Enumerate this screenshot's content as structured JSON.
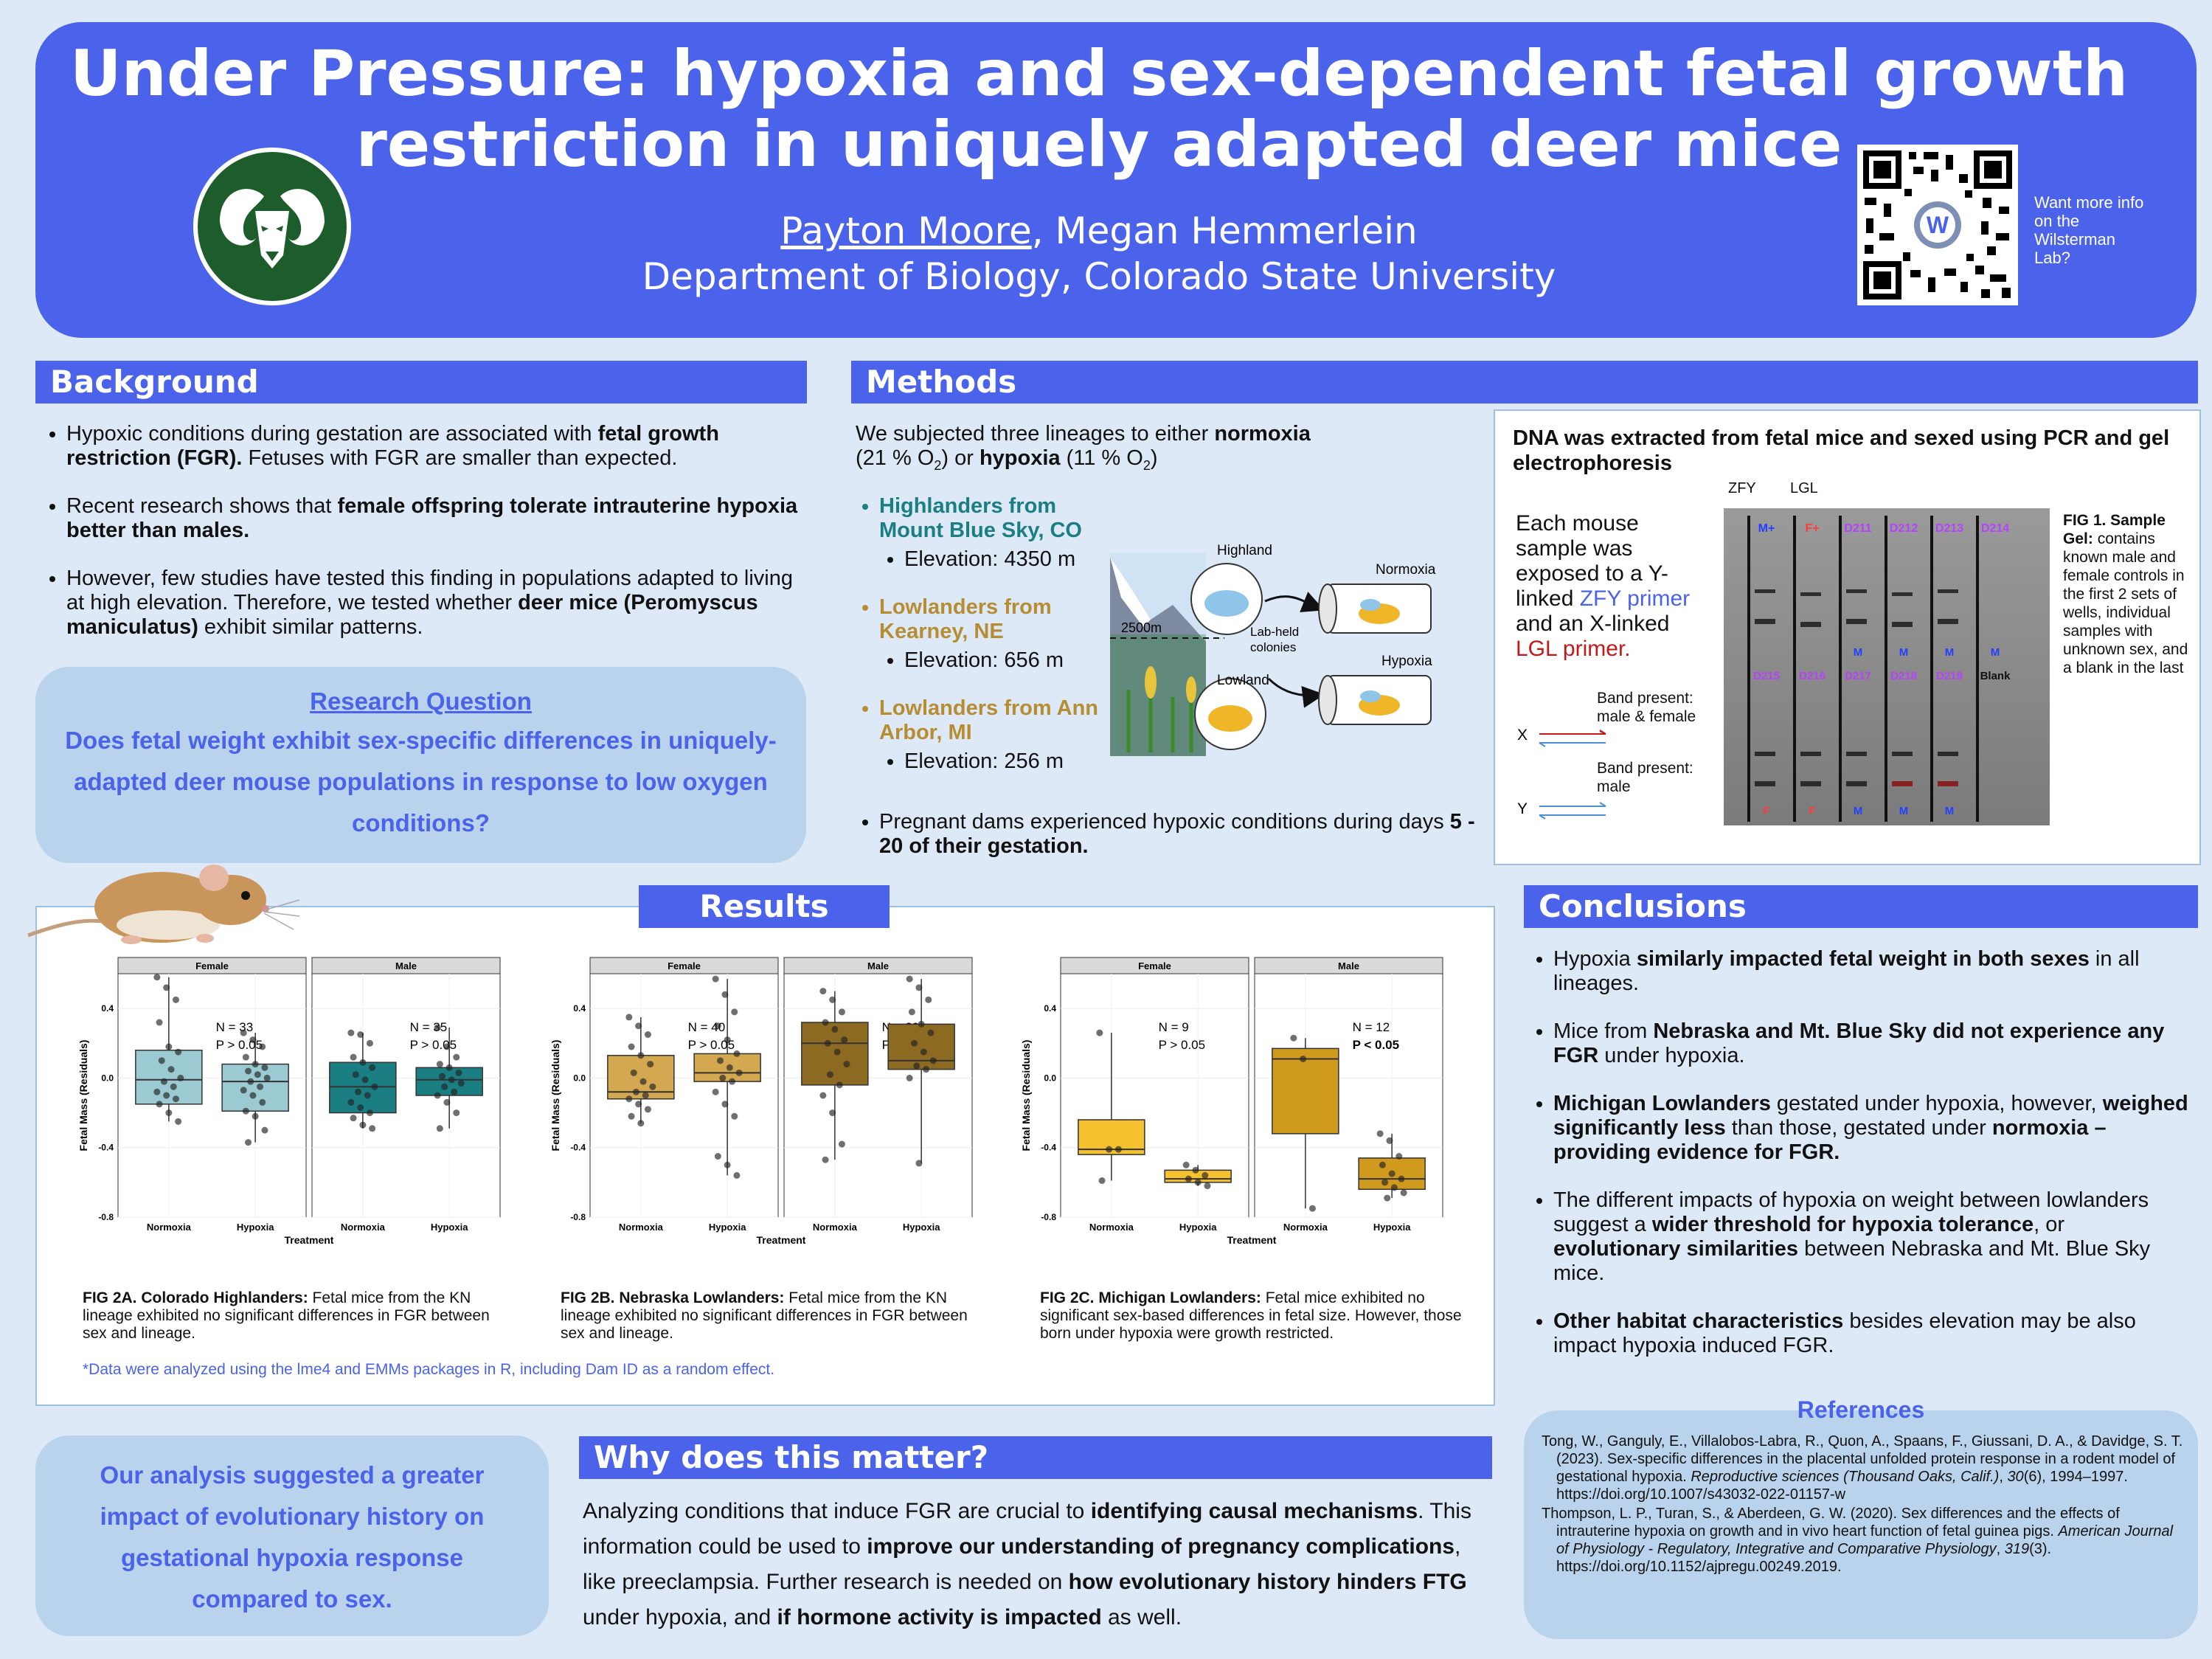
{
  "header": {
    "title_line1": "Under Pressure: hypoxia and sex-dependent fetal growth",
    "title_line2": "restriction in uniquely adapted deer mice",
    "presenting_author": "Payton Moore",
    "coauthor": ", Megan Hemmerlein",
    "affiliation": "Department of Biology, Colorado State University",
    "qr_text": "Want more info on the Wilsterman Lab?",
    "qr_logo_letter": "W"
  },
  "background": {
    "heading": "Background",
    "b1_a": "Hypoxic conditions during gestation are associated with ",
    "b1_b": "fetal growth restriction (FGR).",
    "b1_c": " Fetuses with FGR are smaller than expected.",
    "b2_a": "Recent research shows that ",
    "b2_b": "female offspring tolerate intrauterine hypoxia better than males.",
    "b3_a": "However, few studies have tested this finding in populations adapted to living at high elevation. Therefore, we tested whether ",
    "b3_b": "deer mice (Peromyscus maniculatus)",
    "b3_c": " exhibit similar patterns.",
    "rq_title": "Research Question",
    "rq_text": "Does fetal weight exhibit sex-specific differences in uniquely-adapted deer mouse populations in response to low oxygen conditions?"
  },
  "methods": {
    "heading": "Methods",
    "intro_a": "We subjected three lineages to either ",
    "intro_normoxia": "normoxia",
    "intro_b": "(21 % O",
    "intro_c": ") or ",
    "intro_hypoxia": "hypoxia",
    "intro_d": " (11 % O",
    "intro_e": ")",
    "sub2": "2",
    "lineages": [
      {
        "name": "Highlanders from Mount Blue Sky, CO",
        "elev": "Elevation: 4350 m"
      },
      {
        "name": "Lowlanders from Kearney, NE",
        "elev": "Elevation: 656 m"
      },
      {
        "name": "Lowlanders from Ann Arbor, MI",
        "elev": "Elevation: 256 m"
      }
    ],
    "preg_a": "Pregnant dams experienced hypoxic conditions during days ",
    "preg_b": "5 - 20 of their gestation.",
    "diagram": {
      "highland": "Highland",
      "lowland": "Lowland",
      "altitude": "2500m",
      "lab": "Lab-held colonies",
      "normoxia": "Normoxia",
      "hypoxia": "Hypoxia"
    }
  },
  "dna": {
    "title": "DNA was extracted from fetal mice and sexed using PCR and gel electrophoresis",
    "desc_a": "Each mouse sample was exposed to a Y-linked ",
    "desc_zfy": "ZFY primer",
    "desc_b": " and an X-linked ",
    "desc_lgl": "LGL primer.",
    "zfy": "ZFY",
    "lgl": "LGL",
    "band1": "Band present: male & female",
    "band2": "Band present: male",
    "x": "X",
    "y": "Y",
    "lanes_top": [
      "M+",
      "F+",
      "D211",
      "D212",
      "D213",
      "D214"
    ],
    "lanes_mid": [
      "D215",
      "D216",
      "D217",
      "D218",
      "D219",
      "Blank"
    ],
    "sex_top": [
      "",
      "",
      "M",
      "M",
      "M",
      "M"
    ],
    "sex_bottom": [
      "F",
      "F",
      "M",
      "M",
      "M",
      ""
    ],
    "fig_title": "FIG 1. Sample Gel:",
    "fig_text": "contains known male and female controls in the first 2 sets of wells, individual samples with unknown sex, and a blank in the last"
  },
  "results": {
    "heading": "Results",
    "note": "*Data were analyzed using the lme4 and EMMs packages in R, including Dam ID as a random effect.",
    "captions": [
      {
        "title": "FIG 2A. Colorado Highlanders:",
        "text": " Fetal mice from the KN lineage exhibited no significant differences in FGR between sex and lineage."
      },
      {
        "title": "FIG 2B. Nebraska Lowlanders:",
        "text": " Fetal mice from the KN lineage exhibited no significant differences in FGR between sex and lineage."
      },
      {
        "title": "FIG 2C. Michigan Lowlanders:",
        "text": " Fetal mice exhibited no significant sex-based differences in fetal size. However, those born under hypoxia were growth restricted."
      }
    ]
  },
  "chart_data": [
    {
      "type": "box",
      "ylabel": "Fetal Mass (Residuals)",
      "xlabel": "Treatment",
      "categories": [
        "Normoxia",
        "Hypoxia"
      ],
      "facets": [
        "Female",
        "Male"
      ],
      "yticks": [
        "0.4",
        "0.0",
        "-0.4",
        "-0.8"
      ],
      "ylim": [
        -0.8,
        0.6
      ],
      "colors": [
        "#9ccad2",
        "#1a7e83"
      ],
      "annotations": [
        {
          "n": "N = 33",
          "p": "P > 0.05",
          "bold": false
        },
        {
          "n": "N = 35",
          "p": "P > 0.05",
          "bold": false
        }
      ],
      "boxes": [
        {
          "facet": 0,
          "cat": 0,
          "q1": -0.15,
          "med": -0.01,
          "q3": 0.16,
          "min": -0.25,
          "max": 0.58,
          "points": [
            0.58,
            0.52,
            0.45,
            0.32,
            0.18,
            0.15,
            0.1,
            0.05,
            0.0,
            -0.02,
            -0.05,
            -0.08,
            -0.1,
            -0.12,
            -0.15,
            -0.2,
            -0.25
          ]
        },
        {
          "facet": 0,
          "cat": 1,
          "q1": -0.19,
          "med": -0.02,
          "q3": 0.08,
          "min": -0.37,
          "max": 0.26,
          "points": [
            0.26,
            0.22,
            0.18,
            0.12,
            0.08,
            0.06,
            0.04,
            0.02,
            0.0,
            -0.02,
            -0.05,
            -0.07,
            -0.1,
            -0.14,
            -0.19,
            -0.22,
            -0.3,
            -0.37
          ]
        },
        {
          "facet": 1,
          "cat": 0,
          "q1": -0.2,
          "med": -0.05,
          "q3": 0.09,
          "min": -0.29,
          "max": 0.26,
          "points": [
            0.26,
            0.25,
            0.2,
            0.12,
            0.09,
            0.06,
            0.02,
            -0.01,
            -0.05,
            -0.08,
            -0.1,
            -0.14,
            -0.17,
            -0.2,
            -0.23,
            -0.27,
            -0.29
          ]
        },
        {
          "facet": 1,
          "cat": 1,
          "q1": -0.1,
          "med": -0.01,
          "q3": 0.06,
          "min": -0.29,
          "max": 0.29,
          "points": [
            0.29,
            0.18,
            0.12,
            0.08,
            0.06,
            0.03,
            0.01,
            -0.01,
            -0.03,
            -0.05,
            -0.08,
            -0.1,
            -0.14,
            -0.2,
            -0.29
          ]
        }
      ]
    },
    {
      "type": "box",
      "ylabel": "Fetal Mass (Residuals)",
      "xlabel": "Treatment",
      "categories": [
        "Normoxia",
        "Hypoxia"
      ],
      "facets": [
        "Female",
        "Male"
      ],
      "yticks": [
        "0.4",
        "0.0",
        "-0.4",
        "-0.8"
      ],
      "ylim": [
        -0.8,
        0.6
      ],
      "colors": [
        "#d3a850",
        "#8c6a22"
      ],
      "annotations": [
        {
          "n": "N = 40",
          "p": "P > 0.05",
          "bold": false
        },
        {
          "n": "N = 29",
          "p": "P > 0.05",
          "bold": false
        }
      ],
      "boxes": [
        {
          "facet": 0,
          "cat": 0,
          "q1": -0.12,
          "med": -0.08,
          "q3": 0.13,
          "min": -0.26,
          "max": 0.35,
          "points": [
            0.35,
            0.3,
            0.25,
            0.18,
            0.13,
            0.08,
            0.03,
            -0.02,
            -0.05,
            -0.08,
            -0.1,
            -0.12,
            -0.15,
            -0.18,
            -0.22,
            -0.26
          ]
        },
        {
          "facet": 0,
          "cat": 1,
          "q1": -0.02,
          "med": 0.03,
          "q3": 0.14,
          "min": -0.56,
          "max": 0.57,
          "points": [
            0.57,
            0.48,
            0.38,
            0.3,
            0.22,
            0.14,
            0.1,
            0.06,
            0.03,
            0.0,
            -0.02,
            -0.08,
            -0.15,
            -0.22,
            -0.45,
            -0.5,
            -0.56
          ]
        },
        {
          "facet": 1,
          "cat": 0,
          "q1": -0.04,
          "med": 0.2,
          "q3": 0.32,
          "min": -0.47,
          "max": 0.5,
          "points": [
            0.5,
            0.45,
            0.38,
            0.32,
            0.28,
            0.22,
            0.2,
            0.15,
            0.08,
            0.02,
            -0.04,
            -0.1,
            -0.2,
            -0.38,
            -0.47
          ]
        },
        {
          "facet": 1,
          "cat": 1,
          "q1": 0.05,
          "med": 0.1,
          "q3": 0.31,
          "min": -0.49,
          "max": 0.57,
          "points": [
            0.57,
            0.52,
            0.45,
            0.38,
            0.31,
            0.26,
            0.2,
            0.15,
            0.1,
            0.07,
            0.05,
            0.0,
            -0.49
          ]
        }
      ]
    },
    {
      "type": "box",
      "ylabel": "Fetal Mass (Residuals)",
      "xlabel": "Treatment",
      "categories": [
        "Normoxia",
        "Hypoxia"
      ],
      "facets": [
        "Female",
        "Male"
      ],
      "yticks": [
        "0.4",
        "0.0",
        "-0.4",
        "-0.8"
      ],
      "ylim": [
        -0.8,
        0.6
      ],
      "colors": [
        "#f6c12f",
        "#d09a1f"
      ],
      "annotations": [
        {
          "n": "N = 9",
          "p": "P > 0.05",
          "bold": false
        },
        {
          "n": "N = 12",
          "p": "P < 0.05",
          "bold": true
        }
      ],
      "boxes": [
        {
          "facet": 0,
          "cat": 0,
          "q1": -0.44,
          "med": -0.41,
          "q3": -0.24,
          "min": -0.59,
          "max": 0.26,
          "points": [
            0.26,
            -0.41,
            -0.41,
            -0.59
          ]
        },
        {
          "facet": 0,
          "cat": 1,
          "q1": -0.6,
          "med": -0.58,
          "q3": -0.53,
          "min": -0.62,
          "max": -0.5,
          "points": [
            -0.5,
            -0.53,
            -0.56,
            -0.58,
            -0.6,
            -0.62
          ]
        },
        {
          "facet": 1,
          "cat": 0,
          "q1": -0.32,
          "med": 0.11,
          "q3": 0.17,
          "min": -0.75,
          "max": 0.23,
          "points": [
            0.23,
            0.11,
            -0.75
          ]
        },
        {
          "facet": 1,
          "cat": 1,
          "q1": -0.64,
          "med": -0.58,
          "q3": -0.46,
          "min": -0.69,
          "max": -0.32,
          "points": [
            -0.32,
            -0.36,
            -0.45,
            -0.5,
            -0.55,
            -0.58,
            -0.6,
            -0.63,
            -0.66,
            -0.69
          ]
        }
      ]
    }
  ],
  "conclusions": {
    "heading": "Conclusions",
    "c1_a": "Hypoxia ",
    "c1_b": "similarly impacted fetal weight in both sexes",
    "c1_c": " in all lineages.",
    "c2_a": "Mice from ",
    "c2_b": "Nebraska and Mt. Blue Sky did not experience any FGR",
    "c2_c": " under hypoxia.",
    "c3_a": "Michigan Lowlanders",
    "c3_b": " gestated under hypoxia, however, ",
    "c3_c": "weighed significantly less",
    "c3_d": " than those, gestated under ",
    "c3_e": "normoxia – providing evidence for FGR.",
    "c4_a": "The different impacts of hypoxia on weight between lowlanders suggest a ",
    "c4_b": "wider threshold for hypoxia tolerance",
    "c4_c": ", or ",
    "c4_d": "evolutionary similarities",
    "c4_e": " between Nebraska and Mt. Blue Sky mice.",
    "c5_a": "Other habitat characteristics",
    "c5_b": " besides elevation may be also impact hypoxia induced FGR."
  },
  "analysis": {
    "text": "Our analysis suggested a greater impact of evolutionary history on gestational hypoxia response compared to sex."
  },
  "why": {
    "heading": "Why does this matter?",
    "t1": "Analyzing conditions that induce FGR are crucial to ",
    "t2": "identifying causal mechanisms",
    "t3": ". This information could be used to ",
    "t4": "improve our understanding of pregnancy complications",
    "t5": ", like preeclampsia. Further research is needed on ",
    "t6": "how evolutionary history hinders FTG",
    "t7": " under hypoxia, and ",
    "t8": "if hormone activity is impacted",
    "t9": " as well."
  },
  "references": {
    "heading": "References",
    "r1_a": "Tong, W., Ganguly, E., Villalobos-Labra, R., Quon, A., Spaans, F., Giussani, D. A., & Davidge, S. T. (2023). Sex-specific differences in the placental unfolded protein response in a rodent model of gestational hypoxia. ",
    "r1_b": "Reproductive sciences (Thousand Oaks, Calif.)",
    "r1_c": ", ",
    "r1_d": "30",
    "r1_e": "(6), 1994–1997. https://doi.org/10.1007/s43032-022-01157-w",
    "r2_a": "Thompson, L. P., Turan, S., & Aberdeen, G. W. (2020). Sex differences and the effects of intrauterine hypoxia on growth and in vivo heart function of fetal guinea pigs. ",
    "r2_b": "American Journal of Physiology - Regulatory, Integrative and Comparative Physiology",
    "r2_c": ", ",
    "r2_d": "319",
    "r2_e": "(3). https://doi.org/10.1152/ajpregu.00249.2019."
  }
}
